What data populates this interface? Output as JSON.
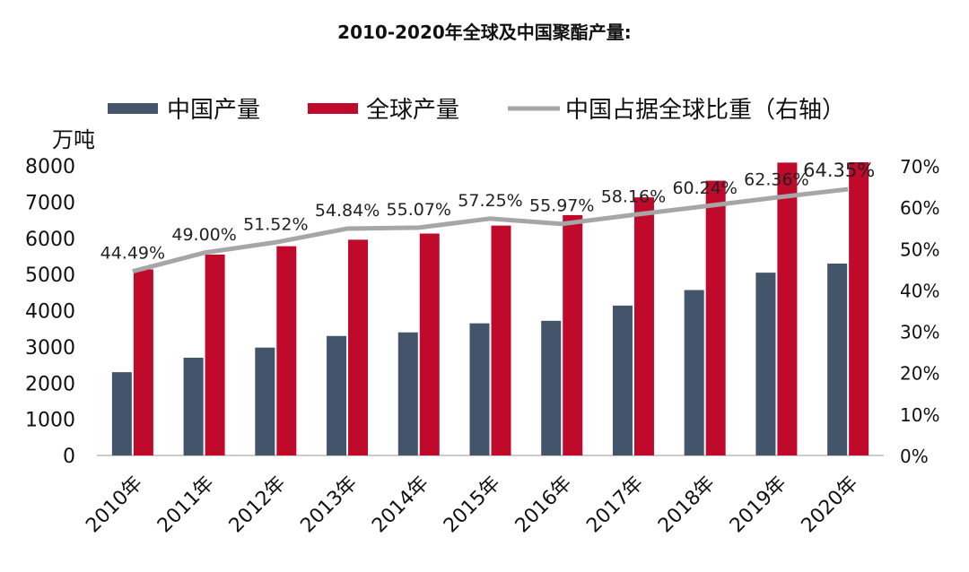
{
  "chart_data": {
    "type": "bar",
    "title": "2010-2020年全球及中国聚酯产量:",
    "categories": [
      "2010年",
      "2011年",
      "2012年",
      "2013年",
      "2014年",
      "2015年",
      "2016年",
      "2017年",
      "2018年",
      "2019年",
      "2020年"
    ],
    "ylabel": "万吨",
    "ylim": [
      0,
      8000
    ],
    "y_ticks": [
      "0",
      "1000",
      "2000",
      "3000",
      "4000",
      "5000",
      "6000",
      "7000",
      "8000"
    ],
    "y2lim": [
      0,
      70
    ],
    "y2_ticks": [
      "0%",
      "10%",
      "20%",
      "30%",
      "40%",
      "50%",
      "60%",
      "70%"
    ],
    "series": [
      {
        "name": "中国产量",
        "kind": "bar",
        "axis": "left",
        "color": "#44546a",
        "values": [
          2300,
          2700,
          2980,
          3300,
          3400,
          3650,
          3720,
          4140,
          4570,
          5050,
          5300
        ]
      },
      {
        "name": "全球产量",
        "kind": "bar",
        "axis": "left",
        "color": "#c00a2c",
        "values": [
          5140,
          5550,
          5780,
          5960,
          6130,
          6350,
          6640,
          7130,
          7590,
          8090,
          8100
        ]
      },
      {
        "name": "中国占据全球比重（右轴）",
        "kind": "line",
        "axis": "right",
        "color": "#a6a6a6",
        "values": [
          44.49,
          49.0,
          51.52,
          54.84,
          55.07,
          57.25,
          55.97,
          58.16,
          60.24,
          62.36,
          64.35
        ],
        "labels": [
          "44.49%",
          "49.00%",
          "51.52%",
          "54.84%",
          "55.07%",
          "57.25%",
          "55.97%",
          "58.16%",
          "60.24%",
          "62.36%",
          "64.35%"
        ]
      }
    ],
    "legend": "top"
  }
}
